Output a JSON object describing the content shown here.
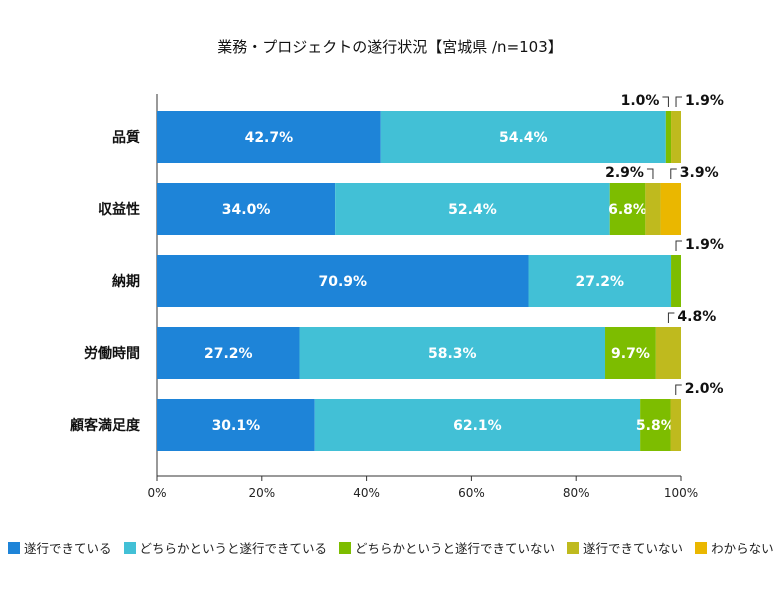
{
  "chart_data": {
    "type": "bar",
    "orientation": "horizontal",
    "stacked": true,
    "title": "業務・プロジェクトの遂行状況【宮城県 /n=103】",
    "xlabel": "",
    "ylabel": "",
    "xlim": [
      0,
      100
    ],
    "x_ticks": [
      "0%",
      "20%",
      "40%",
      "60%",
      "80%",
      "100%"
    ],
    "categories": [
      "品質",
      "収益性",
      "納期",
      "労働時間",
      "顧客満足度"
    ],
    "series": [
      {
        "name": "遂行できている",
        "color": "#1e84d8",
        "values": [
          42.7,
          34.0,
          70.9,
          27.2,
          30.1
        ]
      },
      {
        "name": "どちらかというと遂行できている",
        "color": "#42c0d6",
        "values": [
          54.4,
          52.4,
          27.2,
          58.3,
          62.1
        ]
      },
      {
        "name": "どちらかというと遂行できていない",
        "color": "#7dbd00",
        "values": [
          1.0,
          6.8,
          1.9,
          9.7,
          5.8
        ]
      },
      {
        "name": "遂行できていない",
        "color": "#bfba1e",
        "values": [
          1.9,
          2.9,
          0,
          4.8,
          2.0
        ]
      },
      {
        "name": "わからない",
        "color": "#eab700",
        "values": [
          0,
          3.9,
          0,
          0,
          0
        ]
      }
    ],
    "outside_labels": [
      {
        "row": 0,
        "series": 2,
        "text": "1.0%",
        "side": "left"
      },
      {
        "row": 0,
        "series": 3,
        "text": "1.9%",
        "side": "right"
      },
      {
        "row": 1,
        "series": 3,
        "text": "2.9%",
        "side": "left"
      },
      {
        "row": 1,
        "series": 4,
        "text": "3.9%",
        "side": "right"
      },
      {
        "row": 2,
        "series": 2,
        "text": "1.9%",
        "side": "right"
      },
      {
        "row": 3,
        "series": 3,
        "text": "4.8%",
        "side": "right"
      },
      {
        "row": 4,
        "series": 3,
        "text": "2.0%",
        "side": "right"
      }
    ],
    "legend_position": "bottom"
  }
}
